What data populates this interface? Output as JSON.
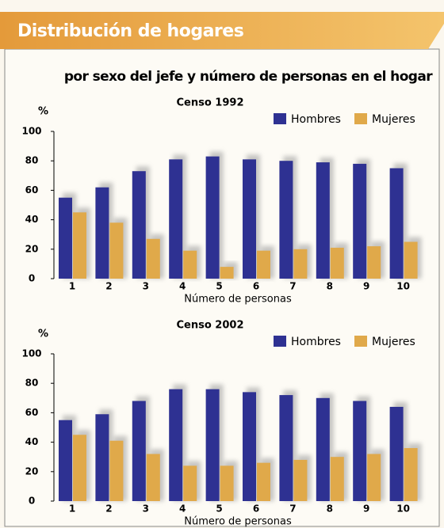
{
  "header": {
    "title": "Distribución de hogares",
    "subtitle": "por sexo del jefe y número de personas en el hogar"
  },
  "chart_data": [
    {
      "type": "bar",
      "title": "Censo 1992",
      "y_label": "%",
      "x_label": "Número de personas",
      "categories": [
        "1",
        "2",
        "3",
        "4",
        "5",
        "6",
        "7",
        "8",
        "9",
        "10"
      ],
      "series": [
        {
          "name": "Hombres",
          "color": "#2e3192",
          "values": [
            55,
            62,
            73,
            81,
            83,
            81,
            80,
            79,
            78,
            75
          ]
        },
        {
          "name": "Mujeres",
          "color": "#e0a94a",
          "values": [
            45,
            38,
            27,
            19,
            8,
            19,
            20,
            21,
            22,
            25
          ]
        }
      ],
      "ylim": [
        0,
        100
      ],
      "yticks": [
        0,
        20,
        40,
        60,
        80,
        100
      ]
    },
    {
      "type": "bar",
      "title": "Censo 2002",
      "y_label": "%",
      "x_label": "Número de personas",
      "categories": [
        "1",
        "2",
        "3",
        "4",
        "5",
        "6",
        "7",
        "8",
        "9",
        "10"
      ],
      "series": [
        {
          "name": "Hombres",
          "color": "#2e3192",
          "values": [
            55,
            59,
            68,
            76,
            76,
            74,
            72,
            70,
            68,
            64
          ]
        },
        {
          "name": "Mujeres",
          "color": "#e0a94a",
          "values": [
            45,
            41,
            32,
            24,
            24,
            26,
            28,
            30,
            32,
            36
          ]
        }
      ],
      "ylim": [
        0,
        100
      ],
      "yticks": [
        0,
        20,
        40,
        60,
        80,
        100
      ]
    }
  ]
}
